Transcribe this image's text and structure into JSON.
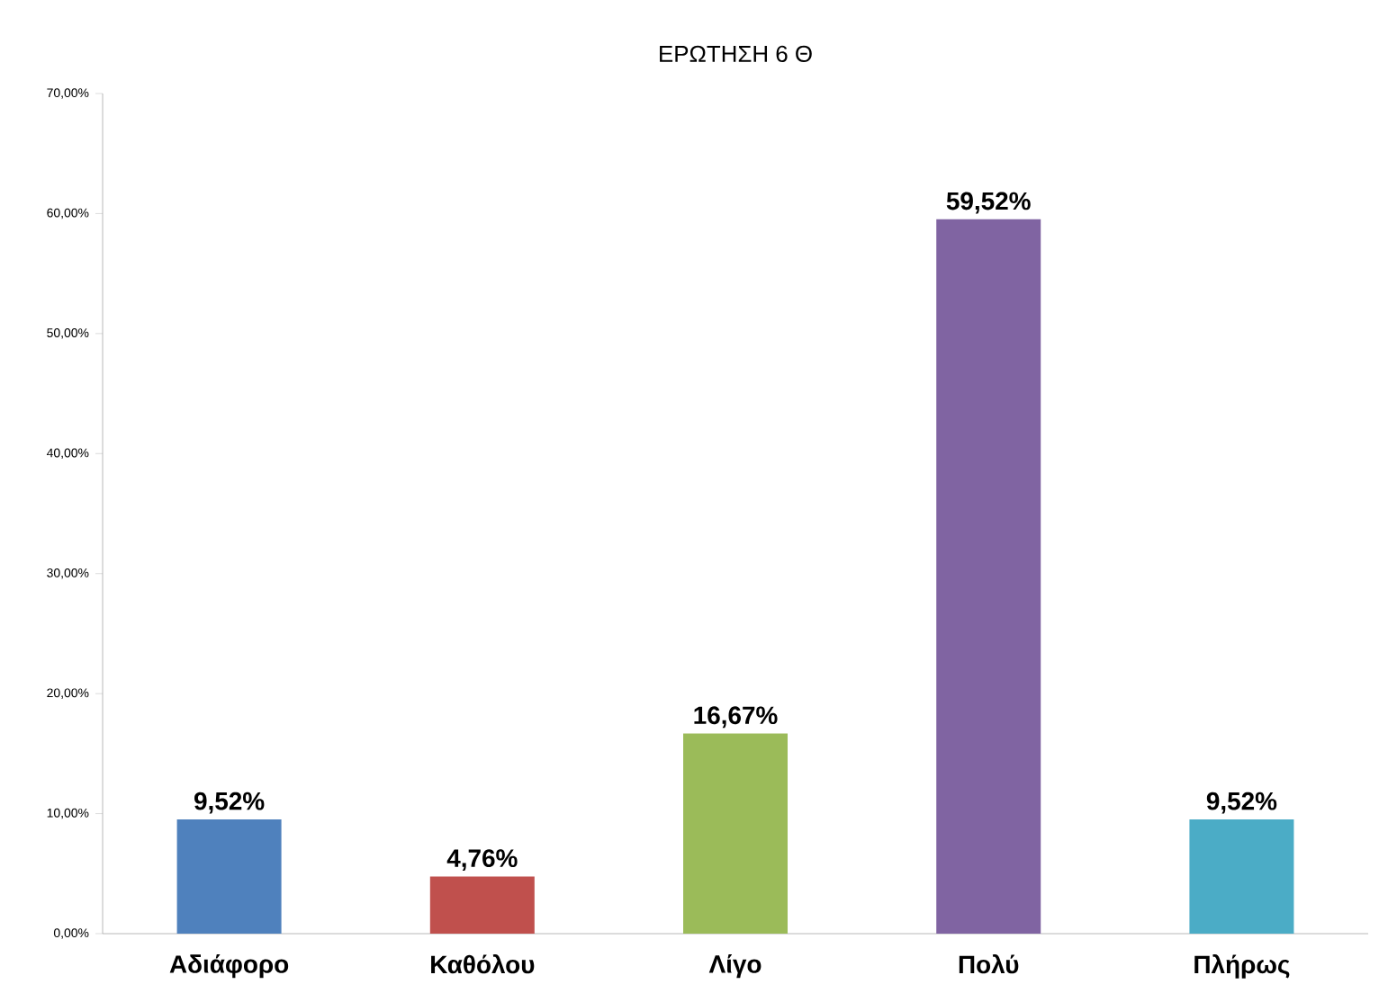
{
  "chart_data": {
    "type": "bar",
    "title": "ΕΡΩΤΗΣΗ 6 Θ",
    "categories": [
      "Αδιάφορο",
      "Καθόλου",
      "Λίγο",
      "Πολύ",
      "Πλήρως"
    ],
    "values": [
      9.52,
      4.76,
      16.67,
      59.52,
      9.52
    ],
    "colors": [
      "#4f81bd",
      "#c0504d",
      "#9bbb59",
      "#8064a2",
      "#4bacc6"
    ],
    "value_labels": [
      "9,52%",
      "4,76%",
      "16,67%",
      "59,52%",
      "9,52%"
    ],
    "ylim": [
      0,
      70
    ],
    "yticks": [
      {
        "value": 0,
        "label": "0,00%"
      },
      {
        "value": 10,
        "label": "10,00%"
      },
      {
        "value": 20,
        "label": "20,00%"
      },
      {
        "value": 30,
        "label": "30,00%"
      },
      {
        "value": 40,
        "label": "40,00%"
      },
      {
        "value": 50,
        "label": "50,00%"
      },
      {
        "value": 60,
        "label": "60,00%"
      },
      {
        "value": 70,
        "label": "70,00%"
      }
    ],
    "grid": false
  }
}
